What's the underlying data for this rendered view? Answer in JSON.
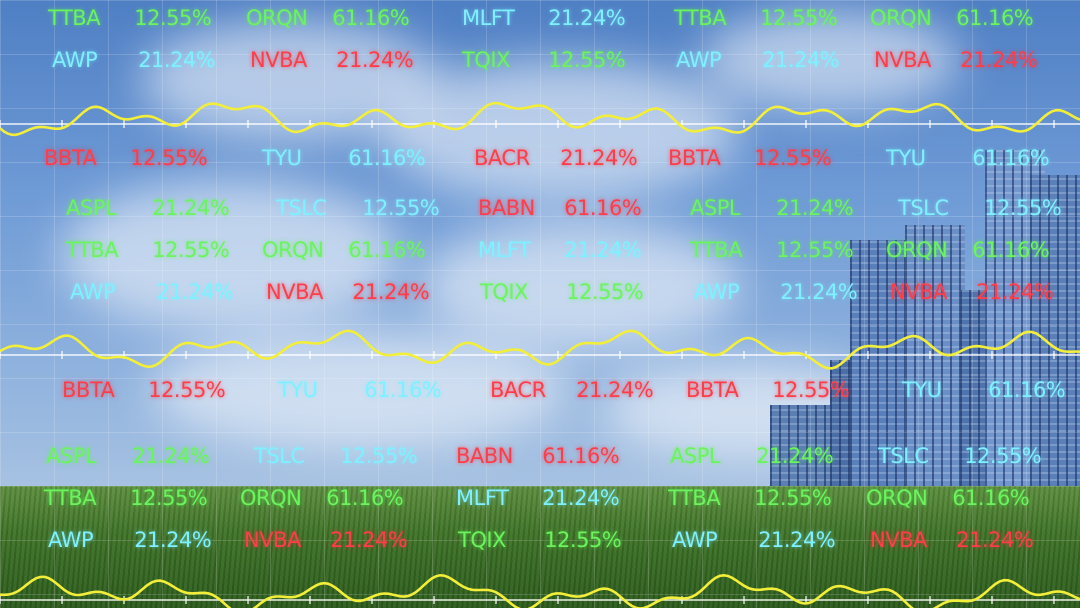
{
  "tickers": [
    {
      "symbol": "TTBA",
      "value": "12.55%",
      "color": "green"
    },
    {
      "symbol": "ORQN",
      "value": "61.16%",
      "color": "green"
    },
    {
      "symbol": "MLFT",
      "value": "21.24%",
      "color": "cyan"
    },
    {
      "symbol": "TTBA",
      "value": "12.55%",
      "color": "green"
    },
    {
      "symbol": "ORQN",
      "value": "61.16%",
      "color": "green"
    },
    {
      "symbol": "AWP",
      "value": "21.24%",
      "color": "cyan"
    },
    {
      "symbol": "NVBA",
      "value": "21.24%",
      "color": "red"
    },
    {
      "symbol": "TQIX",
      "value": "12.55%",
      "color": "green"
    },
    {
      "symbol": "AWP",
      "value": "21.24%",
      "color": "cyan"
    },
    {
      "symbol": "NVBA",
      "value": "21.24%",
      "color": "red"
    },
    {
      "symbol": "BBTA",
      "value": "12.55%",
      "color": "red"
    },
    {
      "symbol": "TYU",
      "value": "61.16%",
      "color": "cyan"
    },
    {
      "symbol": "BACR",
      "value": "21.24%",
      "color": "red"
    },
    {
      "symbol": "BBTA",
      "value": "12.55%",
      "color": "red"
    },
    {
      "symbol": "TYU",
      "value": "61.16%",
      "color": "cyan"
    },
    {
      "symbol": "ASPL",
      "value": "21.24%",
      "color": "green"
    },
    {
      "symbol": "TSLC",
      "value": "12.55%",
      "color": "cyan"
    },
    {
      "symbol": "BABN",
      "value": "61.16%",
      "color": "red"
    },
    {
      "symbol": "ASPL",
      "value": "21.24%",
      "color": "green"
    },
    {
      "symbol": "TSLC",
      "value": "12.55%",
      "color": "cyan"
    },
    {
      "symbol": "TTBA",
      "value": "12.55%",
      "color": "green"
    },
    {
      "symbol": "ORQN",
      "value": "61.16%",
      "color": "green"
    },
    {
      "symbol": "MLFT",
      "value": "21.24%",
      "color": "cyan"
    },
    {
      "symbol": "TTBA",
      "value": "12.55%",
      "color": "green"
    },
    {
      "symbol": "ORQN",
      "value": "61.16%",
      "color": "green"
    },
    {
      "symbol": "AWP",
      "value": "21.24%",
      "color": "cyan"
    },
    {
      "symbol": "NVBA",
      "value": "21.24%",
      "color": "red"
    },
    {
      "symbol": "TQIX",
      "value": "12.55%",
      "color": "green"
    },
    {
      "symbol": "AWP",
      "value": "21.24%",
      "color": "cyan"
    },
    {
      "symbol": "NVBA",
      "value": "21.24%",
      "color": "red"
    },
    {
      "symbol": "BBTA",
      "value": "12.55%",
      "color": "red"
    },
    {
      "symbol": "TYU",
      "value": "61.16%",
      "color": "cyan"
    },
    {
      "symbol": "BACR",
      "value": "21.24%",
      "color": "red"
    },
    {
      "symbol": "BBTA",
      "value": "12.55%",
      "color": "red"
    },
    {
      "symbol": "TYU",
      "value": "61.16%",
      "color": "cyan"
    },
    {
      "symbol": "ASPL",
      "value": "21.24%",
      "color": "green"
    },
    {
      "symbol": "TSLC",
      "value": "12.55%",
      "color": "cyan"
    },
    {
      "symbol": "BABN",
      "value": "61.16%",
      "color": "red"
    },
    {
      "symbol": "ASPL",
      "value": "21.24%",
      "color": "green"
    },
    {
      "symbol": "TSLC",
      "value": "12.55%",
      "color": "cyan"
    },
    {
      "symbol": "TTBA",
      "value": "12.55%",
      "color": "green"
    },
    {
      "symbol": "ORQN",
      "value": "61.16%",
      "color": "green"
    },
    {
      "symbol": "MLFT",
      "value": "21.24%",
      "color": "cyan"
    },
    {
      "symbol": "TTBA",
      "value": "12.55%",
      "color": "green"
    },
    {
      "symbol": "ORQN",
      "value": "61.16%",
      "color": "green"
    },
    {
      "symbol": "AWP",
      "value": "21.24%",
      "color": "cyan"
    },
    {
      "symbol": "NVBA",
      "value": "21.24%",
      "color": "red"
    },
    {
      "symbol": "TQIX",
      "value": "12.55%",
      "color": "green"
    },
    {
      "symbol": "AWP",
      "value": "21.24%",
      "color": "cyan"
    },
    {
      "symbol": "NVBA",
      "value": "21.24%",
      "color": "red"
    }
  ],
  "colors": {
    "green": "#6cf35e",
    "cyan": "#7ff0ff",
    "red": "#ff3d4a",
    "wave": "#f2ee3a",
    "axis": "#ffffff"
  }
}
